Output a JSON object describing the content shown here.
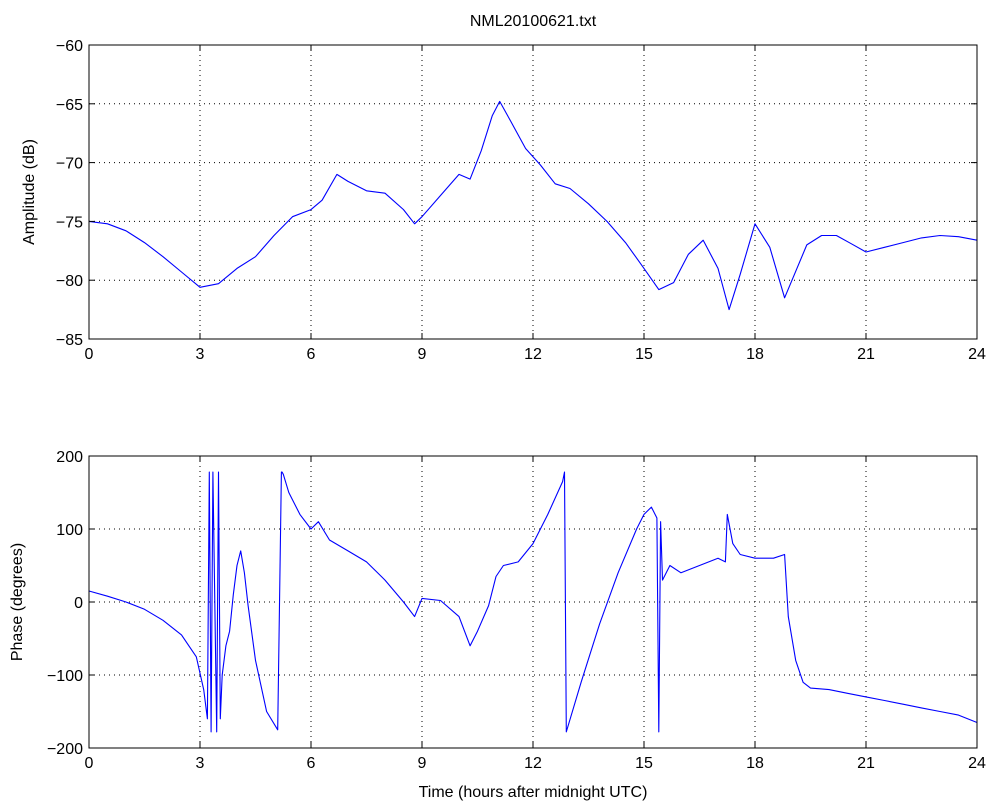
{
  "figure": {
    "title": "NML20100621.txt"
  },
  "chart_data": [
    {
      "type": "line",
      "title": "NML20100621.txt",
      "xlabel": "",
      "ylabel": "Amplitude (dB)",
      "xlim": [
        0,
        24
      ],
      "ylim": [
        -85,
        -60
      ],
      "xticks": [
        0,
        3,
        6,
        9,
        12,
        15,
        18,
        21,
        24
      ],
      "xtick_labels": [
        "0",
        "3",
        "6",
        "9",
        "12",
        "15",
        "18",
        "21",
        "24"
      ],
      "yticks": [
        -85,
        -80,
        -75,
        -70,
        -65,
        -60
      ],
      "ytick_labels": [
        "−85",
        "−80",
        "−75",
        "−70",
        "−65",
        "−60"
      ],
      "grid": true,
      "color": "#0000ff",
      "series": [
        {
          "x": [
            0,
            0.5,
            1.0,
            1.5,
            2.0,
            2.5,
            3.0,
            3.5,
            4.0,
            4.5,
            5.0,
            5.5,
            6.0,
            6.3,
            6.7,
            7.0,
            7.5,
            8.0,
            8.5,
            8.8,
            9.0,
            9.5,
            10.0,
            10.3,
            10.6,
            10.9,
            11.1,
            11.4,
            11.8,
            12.2,
            12.6,
            13.0,
            13.5,
            14.0,
            14.5,
            15.0,
            15.4,
            15.8,
            16.2,
            16.6,
            17.0,
            17.3,
            17.6,
            18.0,
            18.4,
            18.8,
            19.0,
            19.4,
            19.8,
            20.2,
            20.6,
            21.0,
            21.5,
            22.0,
            22.5,
            23.0,
            23.5,
            24.0
          ],
          "values": [
            -75.0,
            -75.2,
            -75.8,
            -76.8,
            -78.0,
            -79.3,
            -80.6,
            -80.3,
            -79.0,
            -78.0,
            -76.2,
            -74.6,
            -74.0,
            -73.2,
            -71.0,
            -71.6,
            -72.4,
            -72.6,
            -74.0,
            -75.2,
            -74.6,
            -72.8,
            -71.0,
            -71.4,
            -69.0,
            -66.0,
            -64.8,
            -66.5,
            -68.8,
            -70.2,
            -71.8,
            -72.2,
            -73.5,
            -75.0,
            -76.8,
            -79.0,
            -80.8,
            -80.2,
            -77.8,
            -76.6,
            -79.0,
            -82.5,
            -79.5,
            -75.2,
            -77.2,
            -81.5,
            -80.0,
            -77.0,
            -76.2,
            -76.2,
            -76.9,
            -77.6,
            -77.2,
            -76.8,
            -76.4,
            -76.2,
            -76.3,
            -76.6
          ]
        }
      ]
    },
    {
      "type": "line",
      "title": "",
      "xlabel": "Time (hours after midnight UTC)",
      "ylabel": "Phase (degrees)",
      "xlim": [
        0,
        24
      ],
      "ylim": [
        -200,
        200
      ],
      "xticks": [
        0,
        3,
        6,
        9,
        12,
        15,
        18,
        21,
        24
      ],
      "xtick_labels": [
        "0",
        "3",
        "6",
        "9",
        "12",
        "15",
        "18",
        "21",
        "24"
      ],
      "yticks": [
        -200,
        -100,
        0,
        100,
        200
      ],
      "ytick_labels": [
        "−200",
        "−100",
        "0",
        "100",
        "200"
      ],
      "grid": true,
      "color": "#0000ff",
      "series": [
        {
          "x": [
            0,
            0.5,
            1.0,
            1.5,
            2.0,
            2.5,
            2.9,
            3.1,
            3.2,
            3.25,
            3.3,
            3.35,
            3.45,
            3.5,
            3.55,
            3.6,
            3.7,
            3.8,
            3.9,
            4.0,
            4.1,
            4.2,
            4.3,
            4.5,
            4.8,
            5.1,
            5.2,
            5.22,
            5.25,
            5.4,
            5.7,
            6.0,
            6.2,
            6.5,
            7.0,
            7.5,
            8.0,
            8.5,
            8.8,
            9.0,
            9.5,
            10.0,
            10.3,
            10.5,
            10.8,
            11.0,
            11.2,
            11.6,
            12.0,
            12.4,
            12.8,
            12.85,
            12.9,
            13.3,
            13.8,
            14.3,
            14.8,
            15.0,
            15.2,
            15.35,
            15.4,
            15.45,
            15.5,
            15.7,
            16.0,
            16.5,
            17.0,
            17.2,
            17.25,
            17.4,
            17.6,
            18.0,
            18.5,
            18.8,
            18.9,
            19.1,
            19.3,
            19.5,
            20.0,
            20.5,
            21.0,
            21.5,
            22.0,
            22.5,
            23.0,
            23.5,
            24.0
          ],
          "values": [
            15,
            8,
            0,
            -10,
            -25,
            -45,
            -75,
            -120,
            -160,
            178,
            -178,
            178,
            -178,
            178,
            -160,
            -100,
            -60,
            -40,
            10,
            50,
            70,
            40,
            -5,
            -80,
            -150,
            -175,
            178,
            178,
            175,
            150,
            120,
            100,
            110,
            85,
            70,
            55,
            30,
            0,
            -20,
            5,
            2,
            -20,
            -60,
            -40,
            -5,
            35,
            50,
            55,
            80,
            120,
            165,
            178,
            -178,
            -110,
            -30,
            40,
            100,
            120,
            130,
            115,
            -178,
            110,
            30,
            50,
            40,
            50,
            60,
            55,
            120,
            80,
            65,
            60,
            60,
            65,
            -20,
            -80,
            -110,
            -118,
            -120,
            -125,
            -130,
            -135,
            -140,
            -145,
            -150,
            -155,
            -165
          ]
        }
      ]
    }
  ]
}
